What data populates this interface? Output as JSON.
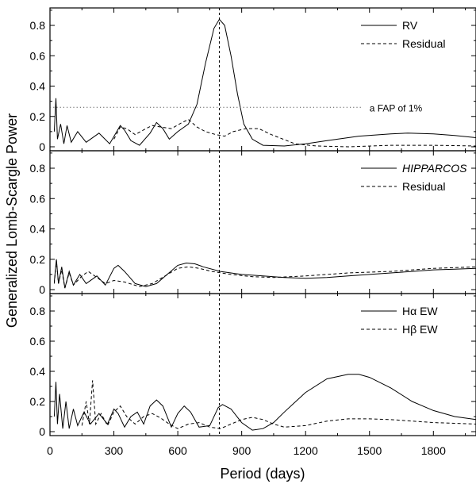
{
  "chart_data": {
    "type": "line",
    "xlabel": "Period (days)",
    "ylabel": "Generalized Lomb-Scargle Power",
    "xlim": [
      0,
      2000
    ],
    "x_ticks": [
      0,
      300,
      600,
      900,
      1200,
      1500,
      1800
    ],
    "grid": false,
    "reference_line": {
      "x": 795,
      "style": "dashed",
      "spans": "all panels"
    },
    "panels": [
      {
        "ylim": [
          0,
          0.9
        ],
        "y_ticks": [
          0,
          0.2,
          0.4,
          0.6,
          0.8
        ],
        "legend_position": "top-right",
        "series": [
          {
            "name": "RV",
            "style": "solid",
            "points": [
              [
                20,
                0.1
              ],
              [
                28,
                0.32
              ],
              [
                35,
                0.05
              ],
              [
                50,
                0.15
              ],
              [
                65,
                0.02
              ],
              [
                80,
                0.14
              ],
              [
                100,
                0.03
              ],
              [
                130,
                0.1
              ],
              [
                170,
                0.03
              ],
              [
                230,
                0.09
              ],
              [
                280,
                0.02
              ],
              [
                330,
                0.14
              ],
              [
                350,
                0.11
              ],
              [
                380,
                0.04
              ],
              [
                420,
                0.01
              ],
              [
                470,
                0.09
              ],
              [
                500,
                0.16
              ],
              [
                530,
                0.12
              ],
              [
                560,
                0.05
              ],
              [
                600,
                0.1
              ],
              [
                650,
                0.15
              ],
              [
                690,
                0.28
              ],
              [
                730,
                0.55
              ],
              [
                770,
                0.78
              ],
              [
                795,
                0.84
              ],
              [
                820,
                0.8
              ],
              [
                850,
                0.6
              ],
              [
                880,
                0.35
              ],
              [
                910,
                0.15
              ],
              [
                950,
                0.05
              ],
              [
                1000,
                0.01
              ],
              [
                1100,
                0.005
              ],
              [
                1200,
                0.02
              ],
              [
                1300,
                0.04
              ],
              [
                1450,
                0.07
              ],
              [
                1600,
                0.085
              ],
              [
                1680,
                0.09
              ],
              [
                1800,
                0.085
              ],
              [
                1900,
                0.075
              ],
              [
                2000,
                0.06
              ]
            ]
          },
          {
            "name": "Residual",
            "style": "dashed",
            "points": [
              [
                300,
                0.05
              ],
              [
                330,
                0.13
              ],
              [
                360,
                0.12
              ],
              [
                400,
                0.08
              ],
              [
                450,
                0.12
              ],
              [
                480,
                0.14
              ],
              [
                520,
                0.13
              ],
              [
                570,
                0.12
              ],
              [
                620,
                0.16
              ],
              [
                650,
                0.18
              ],
              [
                690,
                0.13
              ],
              [
                730,
                0.1
              ],
              [
                780,
                0.08
              ],
              [
                820,
                0.07
              ],
              [
                860,
                0.1
              ],
              [
                920,
                0.12
              ],
              [
                980,
                0.12
              ],
              [
                1040,
                0.08
              ],
              [
                1150,
                0.02
              ],
              [
                1250,
                0.005
              ],
              [
                1400,
                0.0
              ],
              [
                1600,
                0.01
              ],
              [
                1800,
                0.01
              ],
              [
                2000,
                0.005
              ]
            ]
          }
        ],
        "fap_line": {
          "y": 0.26,
          "x_range": [
            0,
            1470
          ],
          "style": "dotted",
          "label": "a FAP of 1%"
        }
      },
      {
        "ylim": [
          0,
          0.9
        ],
        "y_ticks": [
          0,
          0.2,
          0.4,
          0.6,
          0.8
        ],
        "legend_position": "top-right",
        "series": [
          {
            "name": "HIPPARCOS",
            "style": "solid",
            "points": [
              [
                20,
                0.05
              ],
              [
                30,
                0.2
              ],
              [
                40,
                0.04
              ],
              [
                55,
                0.15
              ],
              [
                70,
                0.01
              ],
              [
                90,
                0.12
              ],
              [
                110,
                0.03
              ],
              [
                140,
                0.1
              ],
              [
                170,
                0.04
              ],
              [
                220,
                0.09
              ],
              [
                260,
                0.03
              ],
              [
                300,
                0.14
              ],
              [
                320,
                0.16
              ],
              [
                350,
                0.12
              ],
              [
                400,
                0.04
              ],
              [
                450,
                0.02
              ],
              [
                500,
                0.04
              ],
              [
                550,
                0.1
              ],
              [
                600,
                0.16
              ],
              [
                640,
                0.175
              ],
              [
                680,
                0.17
              ],
              [
                720,
                0.15
              ],
              [
                800,
                0.12
              ],
              [
                900,
                0.1
              ],
              [
                1000,
                0.09
              ],
              [
                1100,
                0.08
              ],
              [
                1200,
                0.075
              ],
              [
                1300,
                0.08
              ],
              [
                1400,
                0.09
              ],
              [
                1500,
                0.1
              ],
              [
                1600,
                0.11
              ],
              [
                1700,
                0.12
              ],
              [
                1800,
                0.13
              ],
              [
                1900,
                0.135
              ],
              [
                2000,
                0.14
              ]
            ]
          },
          {
            "name": "Residual",
            "style": "dashed",
            "points": [
              [
                20,
                0.04
              ],
              [
                30,
                0.19
              ],
              [
                40,
                0.04
              ],
              [
                55,
                0.13
              ],
              [
                70,
                0.01
              ],
              [
                90,
                0.11
              ],
              [
                110,
                0.03
              ],
              [
                150,
                0.09
              ],
              [
                180,
                0.12
              ],
              [
                220,
                0.08
              ],
              [
                260,
                0.04
              ],
              [
                300,
                0.06
              ],
              [
                350,
                0.05
              ],
              [
                420,
                0.02
              ],
              [
                480,
                0.04
              ],
              [
                540,
                0.09
              ],
              [
                600,
                0.14
              ],
              [
                650,
                0.15
              ],
              [
                700,
                0.14
              ],
              [
                760,
                0.12
              ],
              [
                850,
                0.1
              ],
              [
                950,
                0.085
              ],
              [
                1050,
                0.08
              ],
              [
                1200,
                0.09
              ],
              [
                1400,
                0.11
              ],
              [
                1600,
                0.12
              ],
              [
                1800,
                0.14
              ],
              [
                2000,
                0.15
              ]
            ]
          }
        ]
      },
      {
        "ylim": [
          0,
          0.9
        ],
        "y_ticks": [
          0,
          0.2,
          0.4,
          0.6,
          0.8
        ],
        "legend_position": "top-right",
        "series": [
          {
            "name": "Hα EW",
            "style": "solid",
            "points": [
              [
                20,
                0.1
              ],
              [
                28,
                0.33
              ],
              [
                35,
                0.05
              ],
              [
                45,
                0.25
              ],
              [
                60,
                0.02
              ],
              [
                75,
                0.2
              ],
              [
                90,
                0.02
              ],
              [
                110,
                0.15
              ],
              [
                130,
                0.04
              ],
              [
                160,
                0.13
              ],
              [
                190,
                0.05
              ],
              [
                230,
                0.12
              ],
              [
                270,
                0.05
              ],
              [
                300,
                0.15
              ],
              [
                320,
                0.12
              ],
              [
                350,
                0.03
              ],
              [
                380,
                0.1
              ],
              [
                410,
                0.13
              ],
              [
                440,
                0.05
              ],
              [
                470,
                0.17
              ],
              [
                500,
                0.21
              ],
              [
                530,
                0.17
              ],
              [
                570,
                0.03
              ],
              [
                600,
                0.12
              ],
              [
                630,
                0.17
              ],
              [
                660,
                0.13
              ],
              [
                700,
                0.03
              ],
              [
                750,
                0.04
              ],
              [
                790,
                0.16
              ],
              [
                810,
                0.18
              ],
              [
                850,
                0.15
              ],
              [
                900,
                0.06
              ],
              [
                950,
                0.01
              ],
              [
                1000,
                0.02
              ],
              [
                1050,
                0.06
              ],
              [
                1100,
                0.13
              ],
              [
                1200,
                0.26
              ],
              [
                1300,
                0.35
              ],
              [
                1400,
                0.38
              ],
              [
                1450,
                0.38
              ],
              [
                1500,
                0.36
              ],
              [
                1600,
                0.29
              ],
              [
                1700,
                0.2
              ],
              [
                1800,
                0.14
              ],
              [
                1900,
                0.1
              ],
              [
                2000,
                0.08
              ]
            ]
          },
          {
            "name": "Hβ EW",
            "style": "dashed",
            "points": [
              [
                150,
                0.04
              ],
              [
                170,
                0.2
              ],
              [
                185,
                0.05
              ],
              [
                200,
                0.34
              ],
              [
                215,
                0.05
              ],
              [
                240,
                0.12
              ],
              [
                270,
                0.04
              ],
              [
                300,
                0.13
              ],
              [
                330,
                0.17
              ],
              [
                360,
                0.1
              ],
              [
                400,
                0.05
              ],
              [
                440,
                0.1
              ],
              [
                480,
                0.12
              ],
              [
                520,
                0.09
              ],
              [
                560,
                0.05
              ],
              [
                600,
                0.02
              ],
              [
                650,
                0.05
              ],
              [
                700,
                0.06
              ],
              [
                750,
                0.03
              ],
              [
                800,
                0.02
              ],
              [
                850,
                0.05
              ],
              [
                900,
                0.08
              ],
              [
                950,
                0.095
              ],
              [
                1000,
                0.08
              ],
              [
                1050,
                0.05
              ],
              [
                1100,
                0.03
              ],
              [
                1200,
                0.04
              ],
              [
                1300,
                0.07
              ],
              [
                1400,
                0.085
              ],
              [
                1500,
                0.085
              ],
              [
                1600,
                0.08
              ],
              [
                1700,
                0.07
              ],
              [
                1800,
                0.06
              ],
              [
                1900,
                0.055
              ],
              [
                2000,
                0.05
              ]
            ]
          }
        ]
      }
    ]
  }
}
